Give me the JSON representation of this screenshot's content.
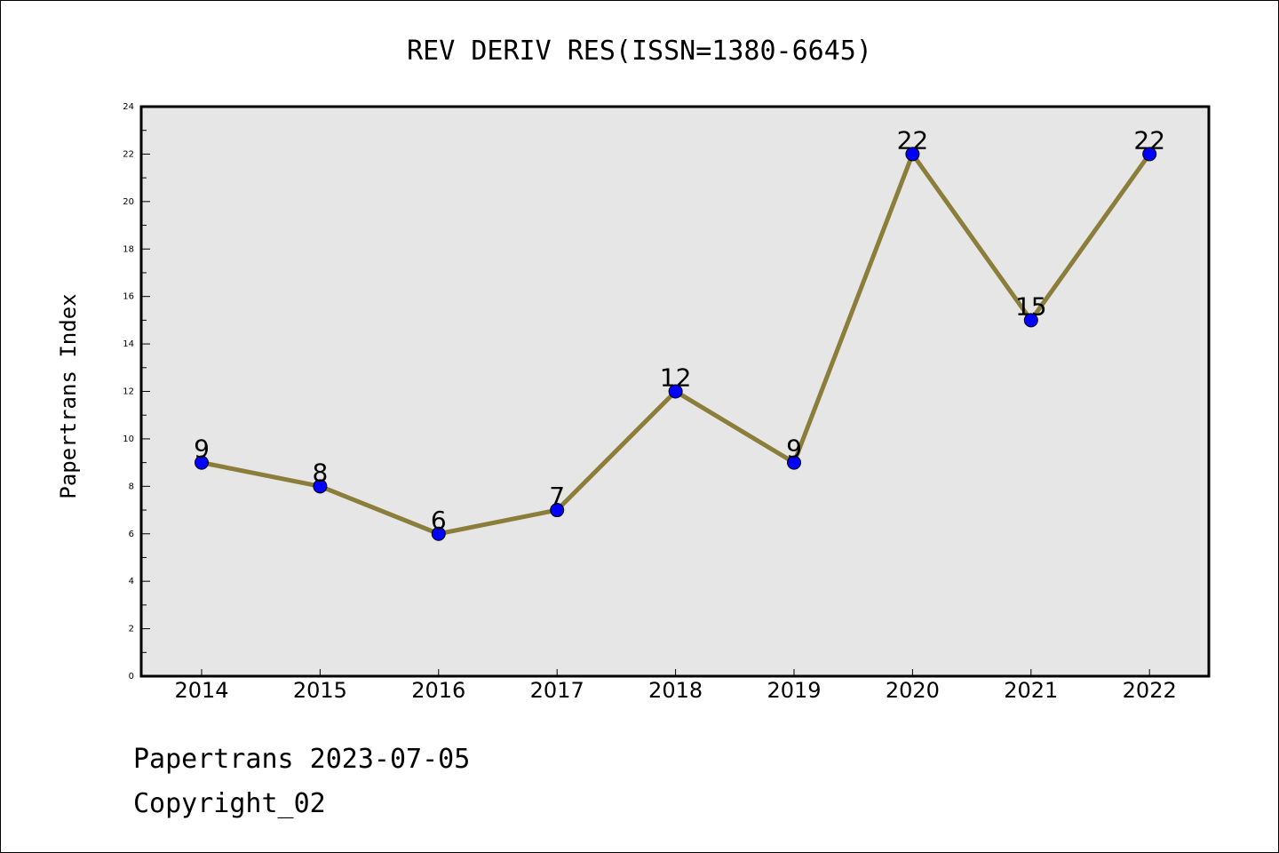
{
  "chart_data": {
    "type": "line",
    "title": "REV DERIV RES(ISSN=1380-6645)",
    "xlabel": "",
    "ylabel": "Papertrans Index",
    "categories": [
      "2014",
      "2015",
      "2016",
      "2017",
      "2018",
      "2019",
      "2020",
      "2021",
      "2022"
    ],
    "values": [
      9,
      8,
      6,
      7,
      12,
      9,
      22,
      15,
      22
    ],
    "ylim": [
      0,
      24
    ],
    "yticks": [
      "0",
      "2",
      "4",
      "6",
      "8",
      "10",
      "12",
      "14",
      "16",
      "18",
      "20",
      "22",
      "24"
    ],
    "grid": false,
    "data_labels": true,
    "colors": {
      "line": "#8b7d3a",
      "marker": "#0000ff",
      "plot_background": "#e6e6e6"
    }
  },
  "footer": {
    "line1": "Papertrans 2023-07-05",
    "line2": "Copyright_02"
  }
}
